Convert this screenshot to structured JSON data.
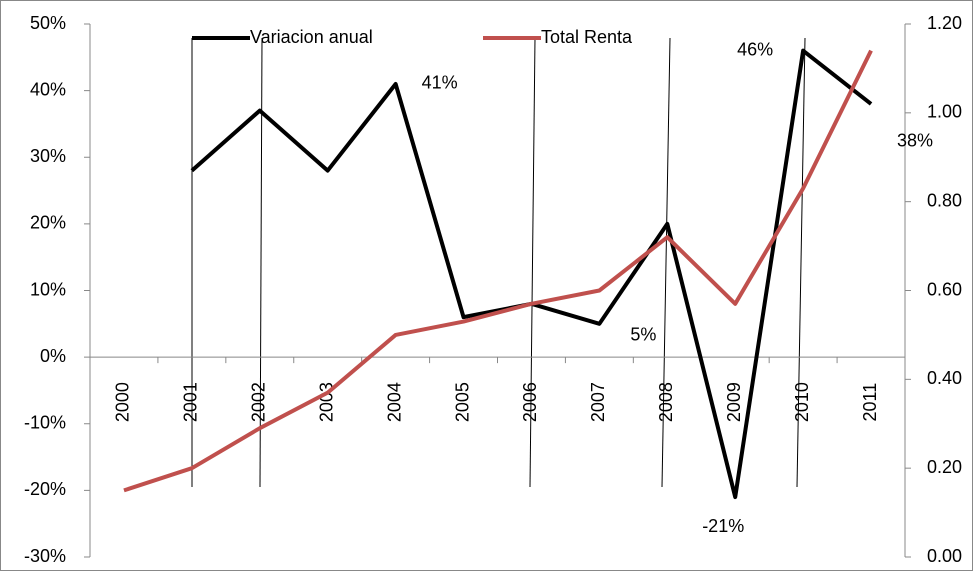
{
  "chart_data": {
    "type": "line",
    "categories": [
      "2000",
      "2001",
      "2002",
      "2003",
      "2004",
      "2005",
      "2006",
      "2007",
      "2008",
      "2009",
      "2010",
      "2011"
    ],
    "series": [
      {
        "name": "Variacion anual",
        "color": "#000000",
        "axis": "y",
        "values": [
          null,
          28,
          37,
          28,
          41,
          6,
          8,
          5,
          20,
          -21,
          46,
          38
        ],
        "value_labels": [
          null,
          null,
          null,
          null,
          "41%",
          null,
          null,
          "5%",
          null,
          "-21%",
          "46%",
          "38%"
        ]
      },
      {
        "name": "Total Renta",
        "color": "#c0504d",
        "axis": "y2",
        "values": [
          0.15,
          0.2,
          0.29,
          0.37,
          0.5,
          0.53,
          0.57,
          0.6,
          0.72,
          0.57,
          0.83,
          1.14
        ]
      }
    ],
    "ylim": [
      -30,
      50
    ],
    "yticks": [
      {
        "value": -30,
        "label": "-30%"
      },
      {
        "value": -20,
        "label": "-20%"
      },
      {
        "value": -10,
        "label": "-10%"
      },
      {
        "value": 0,
        "label": "0%"
      },
      {
        "value": 10,
        "label": "10%"
      },
      {
        "value": 20,
        "label": "20%"
      },
      {
        "value": 30,
        "label": "30%"
      },
      {
        "value": 40,
        "label": "40%"
      },
      {
        "value": 50,
        "label": "50%"
      }
    ],
    "y2lim": [
      0,
      1.2
    ],
    "y2ticks": [
      {
        "value": 0,
        "label": "0.00"
      },
      {
        "value": 0.2,
        "label": "0.20"
      },
      {
        "value": 0.4,
        "label": "0.40"
      },
      {
        "value": 0.6,
        "label": "0.60"
      },
      {
        "value": 0.8,
        "label": "0.80"
      },
      {
        "value": 1.0,
        "label": "1.00"
      },
      {
        "value": 1.2,
        "label": "1.20"
      }
    ],
    "legend": "top"
  }
}
